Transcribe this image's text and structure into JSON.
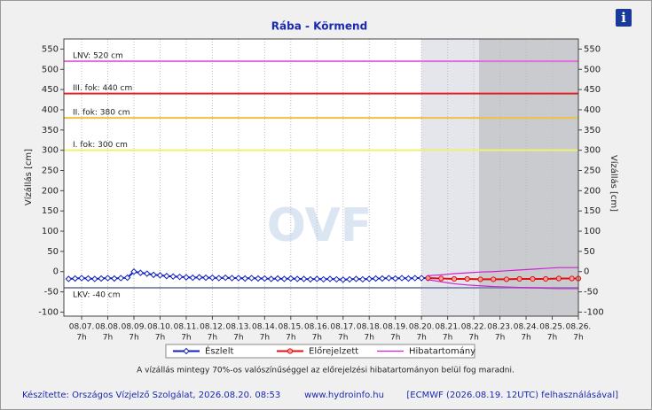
{
  "chart_data": {
    "type": "line",
    "title": "Rába - Körmend",
    "y_label": "Vízállás [cm]",
    "y2_label": "Vízállás [cm]",
    "watermark": "OVF",
    "xlim": [
      6.32,
      26
    ],
    "ylim": [
      -110,
      575
    ],
    "yticks": [
      -100,
      -50,
      0,
      50,
      100,
      150,
      200,
      250,
      300,
      350,
      400,
      450,
      500,
      550
    ],
    "xticks": [
      {
        "value": 7,
        "label": "08.07.",
        "sublabel": "7h"
      },
      {
        "value": 8,
        "label": "08.08.",
        "sublabel": "7h"
      },
      {
        "value": 9,
        "label": "08.09.",
        "sublabel": "7h"
      },
      {
        "value": 10,
        "label": "08.10.",
        "sublabel": "7h"
      },
      {
        "value": 11,
        "label": "08.11.",
        "sublabel": "7h"
      },
      {
        "value": 12,
        "label": "08.12.",
        "sublabel": "7h"
      },
      {
        "value": 13,
        "label": "08.13.",
        "sublabel": "7h"
      },
      {
        "value": 14,
        "label": "08.14.",
        "sublabel": "7h"
      },
      {
        "value": 15,
        "label": "08.15.",
        "sublabel": "7h"
      },
      {
        "value": 16,
        "label": "08.16.",
        "sublabel": "7h"
      },
      {
        "value": 17,
        "label": "08.17.",
        "sublabel": "7h"
      },
      {
        "value": 18,
        "label": "08.18.",
        "sublabel": "7h"
      },
      {
        "value": 19,
        "label": "08.19.",
        "sublabel": "7h"
      },
      {
        "value": 20,
        "label": "08.20.",
        "sublabel": "7h"
      },
      {
        "value": 21,
        "label": "08.21.",
        "sublabel": "7h"
      },
      {
        "value": 22,
        "label": "08.22.",
        "sublabel": "7h"
      },
      {
        "value": 23,
        "label": "08.23.",
        "sublabel": "7h"
      },
      {
        "value": 24,
        "label": "08.24.",
        "sublabel": "7h"
      },
      {
        "value": 25,
        "label": "08.25.",
        "sublabel": "7h"
      },
      {
        "value": 26,
        "label": "08.26.",
        "sublabel": "7h"
      }
    ],
    "grid": true,
    "shaded_regions": [
      {
        "from": 20,
        "to": 22.2,
        "color": "#e4e6ec"
      },
      {
        "from": 22.2,
        "to": 26,
        "color": "#cacbcf"
      }
    ],
    "thresholds": [
      {
        "label": "LNV: 520 cm",
        "value": 520,
        "color": "#e070e0"
      },
      {
        "label": "III. fok: 440 cm",
        "value": 440,
        "color": "#e02020"
      },
      {
        "label": "II. fok: 380 cm",
        "value": 380,
        "color": "#f0c040"
      },
      {
        "label": "I. fok: 300 cm",
        "value": 300,
        "color": "#f0f070"
      },
      {
        "label": "LKV: -40 cm",
        "value": -40,
        "color": "#8890b0"
      }
    ],
    "series": [
      {
        "name": "Észlelt",
        "color": "#1020c0",
        "x": [
          6.5,
          6.75,
          7,
          7.25,
          7.5,
          7.75,
          8,
          8.25,
          8.5,
          8.75,
          9,
          9.25,
          9.5,
          9.75,
          10,
          10.25,
          10.5,
          10.75,
          11,
          11.25,
          11.5,
          11.75,
          12,
          12.25,
          12.5,
          12.75,
          13,
          13.25,
          13.5,
          13.75,
          14,
          14.25,
          14.5,
          14.75,
          15,
          15.25,
          15.5,
          15.75,
          16,
          16.25,
          16.5,
          16.75,
          17,
          17.25,
          17.5,
          17.75,
          18,
          18.25,
          18.5,
          18.75,
          19,
          19.25,
          19.5,
          19.75,
          20,
          20.25
        ],
        "values": [
          -18,
          -17,
          -16,
          -17,
          -18,
          -17,
          -16,
          -17,
          -16,
          -15,
          0,
          -3,
          -5,
          -8,
          -9,
          -11,
          -12,
          -13,
          -14,
          -15,
          -14,
          -15,
          -15,
          -16,
          -15,
          -16,
          -16,
          -17,
          -16,
          -17,
          -17,
          -18,
          -17,
          -18,
          -17,
          -18,
          -18,
          -19,
          -18,
          -19,
          -18,
          -19,
          -20,
          -19,
          -18,
          -19,
          -18,
          -17,
          -17,
          -16,
          -17,
          -16,
          -17,
          -16,
          -16,
          -16
        ]
      },
      {
        "name": "Előrejelzett",
        "color": "#e01010",
        "x": [
          20.25,
          20.75,
          21.25,
          21.75,
          22.25,
          22.75,
          23.25,
          23.75,
          24.25,
          24.75,
          25.25,
          25.75,
          26
        ],
        "values": [
          -16,
          -17,
          -18,
          -18,
          -19,
          -19,
          -19,
          -18,
          -18,
          -18,
          -17,
          -17,
          -17
        ]
      },
      {
        "name": "Hibatartomány",
        "color": "#d020d0",
        "x": [
          20.25,
          20.75,
          21.25,
          21.75,
          22.25,
          22.75,
          23.25,
          23.75,
          24.25,
          24.75,
          25.25,
          25.75,
          26
        ],
        "upper": [
          -10,
          -8,
          -5,
          -3,
          -1,
          0,
          2,
          4,
          6,
          8,
          10,
          10,
          10
        ],
        "lower": [
          -20,
          -25,
          -30,
          -33,
          -35,
          -37,
          -38,
          -39,
          -40,
          -41,
          -42,
          -42,
          -42
        ]
      }
    ],
    "note": "A vízállás mintegy 70%-os valószínűséggel az előrejelzési hibatartományon belül fog maradni.",
    "footer": {
      "author": "Készítette: Országos Vízjelző Szolgálat, 2026.08.20. 08:53",
      "url": "www.hydroinfo.hu",
      "source": "[ECMWF (2026.08.19. 12UTC) felhasználásával]"
    }
  }
}
